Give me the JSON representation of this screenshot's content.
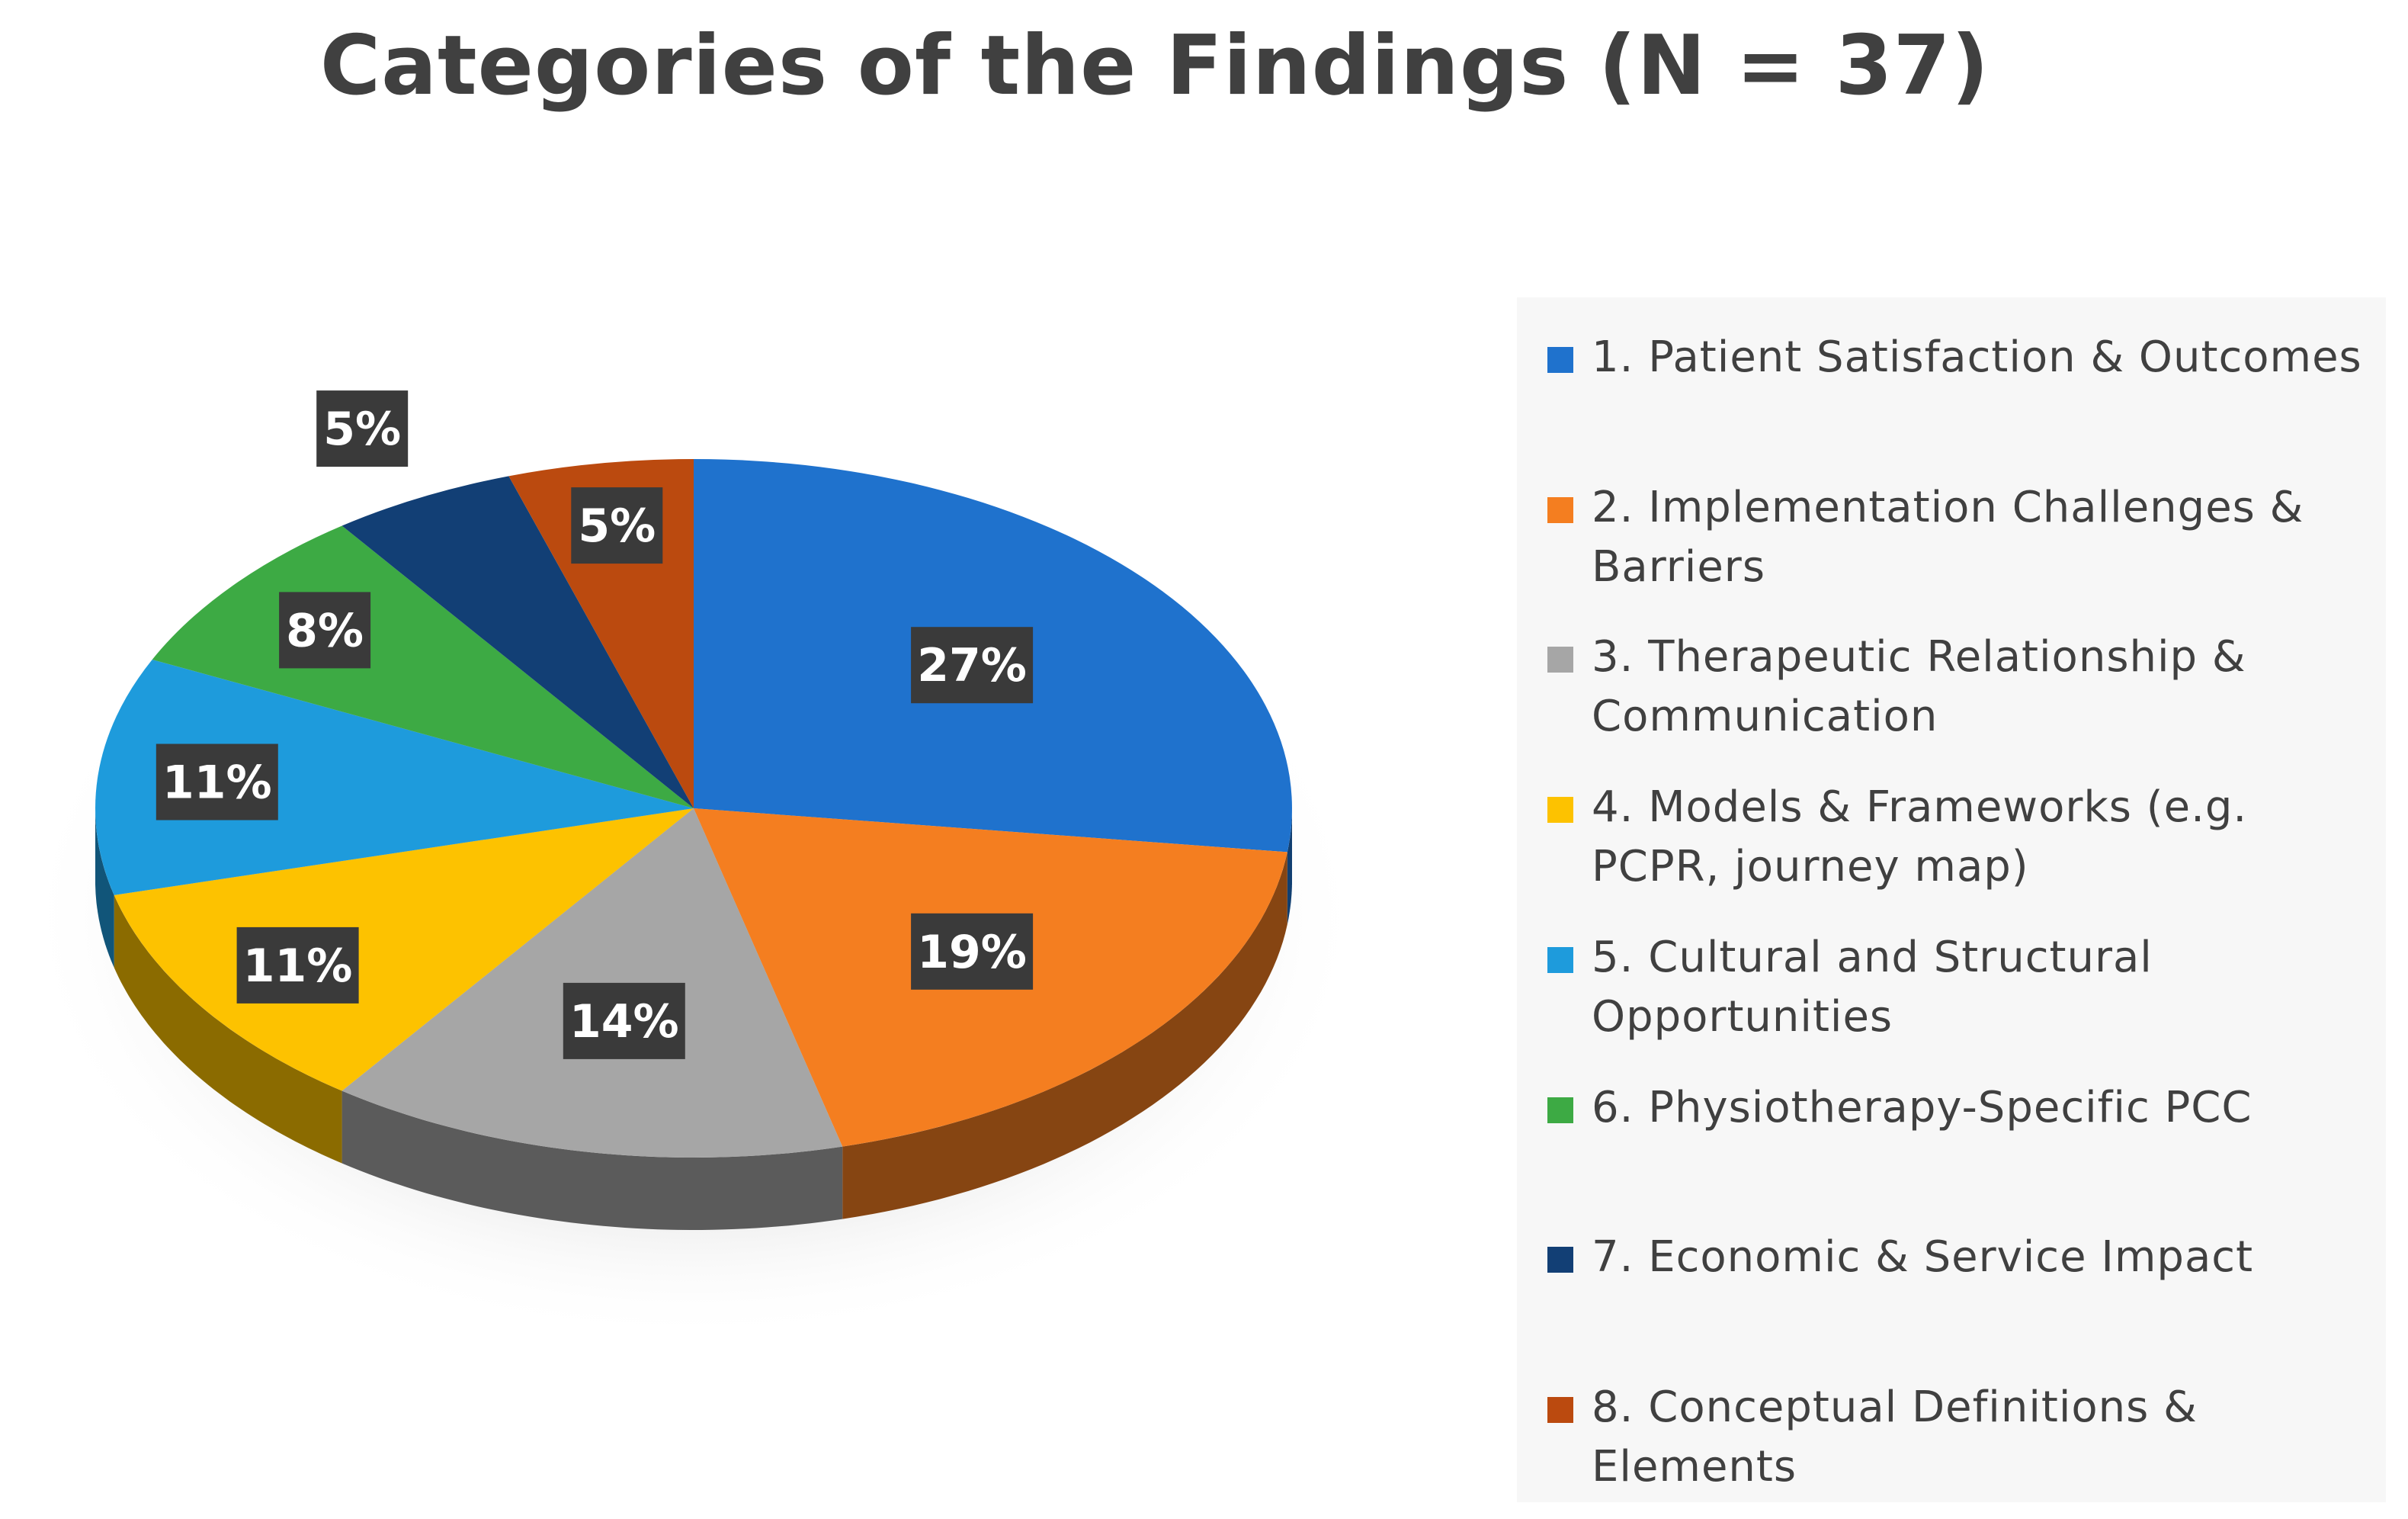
{
  "chart_data": {
    "type": "pie",
    "title": "Categories of the Findings (N = 37)",
    "legend_position": "right",
    "slices": [
      {
        "label": "1. Patient Satisfaction & Outcomes",
        "percent": 27,
        "display": "27%",
        "color": "#1f72cd"
      },
      {
        "label": "2. Implementation Challenges & Barriers",
        "percent": 19,
        "display": "19%",
        "color": "#f47e20"
      },
      {
        "label": "3. Therapeutic Relationship & Communication",
        "percent": 14,
        "display": "14%",
        "color": "#a6a6a6"
      },
      {
        "label": "4. Models & Frameworks (e.g. PCPR, journey map)",
        "percent": 11,
        "display": "11%",
        "color": "#fdc200"
      },
      {
        "label": "5. Cultural and Structural Opportunities",
        "percent": 11,
        "display": "11%",
        "color": "#1e9bdc"
      },
      {
        "label": "6. Physiotherapy-Specific PCC",
        "percent": 8,
        "display": "8%",
        "color": "#3daa44"
      },
      {
        "label": "7. Economic & Service Impact",
        "percent": 5,
        "display": "5%",
        "color": "#123f75"
      },
      {
        "label": "8. Conceptual Definitions & Elements",
        "percent": 5,
        "display": "5%",
        "color": "#bb4a0f"
      }
    ]
  }
}
